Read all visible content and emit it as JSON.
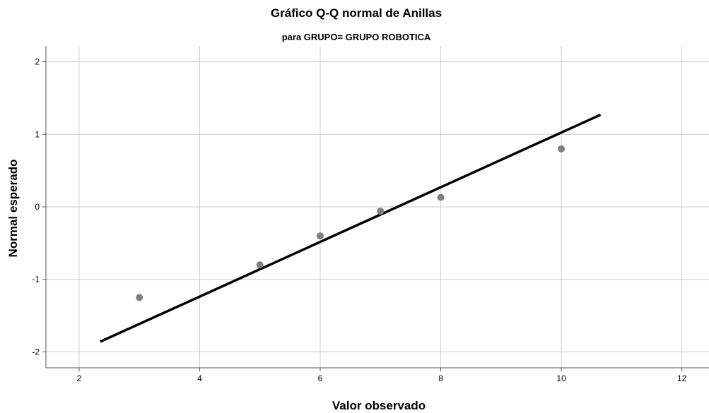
{
  "chart_data": {
    "type": "scatter",
    "title": "Gráfico Q-Q normal de Anillas",
    "subtitle": "para GRUPO= GRUPO ROBOTICA",
    "xlabel": "Valor observado",
    "ylabel": "Normal esperado",
    "xlim": [
      1.45,
      12.45
    ],
    "ylim": [
      -2.22,
      2.22
    ],
    "x_ticks": [
      2,
      4,
      6,
      8,
      10,
      12
    ],
    "x_tick_labels": [
      "2",
      "4",
      "6",
      "8",
      "10",
      "12"
    ],
    "y_ticks": [
      -2,
      -1,
      0,
      1,
      2
    ],
    "y_tick_labels": [
      "-2",
      "-1",
      "0",
      "1",
      "2"
    ],
    "grid": true,
    "legend": false,
    "series": [
      {
        "type": "scatter",
        "color": "#7f7f7f",
        "points": [
          {
            "x": 3,
            "y": -1.25
          },
          {
            "x": 5,
            "y": -0.8
          },
          {
            "x": 6,
            "y": -0.4
          },
          {
            "x": 7,
            "y": -0.06
          },
          {
            "x": 8,
            "y": 0.13
          },
          {
            "x": 10,
            "y": 0.8
          }
        ]
      },
      {
        "type": "line",
        "color": "#000000",
        "points": [
          {
            "x": 2.35,
            "y": -1.86
          },
          {
            "x": 10.65,
            "y": 1.27
          }
        ]
      }
    ]
  },
  "colors": {
    "grid": "#cccccc",
    "axis": "#555555",
    "markers": "#7f7f7f",
    "reference_line": "#000000",
    "background": "#ffffff"
  }
}
